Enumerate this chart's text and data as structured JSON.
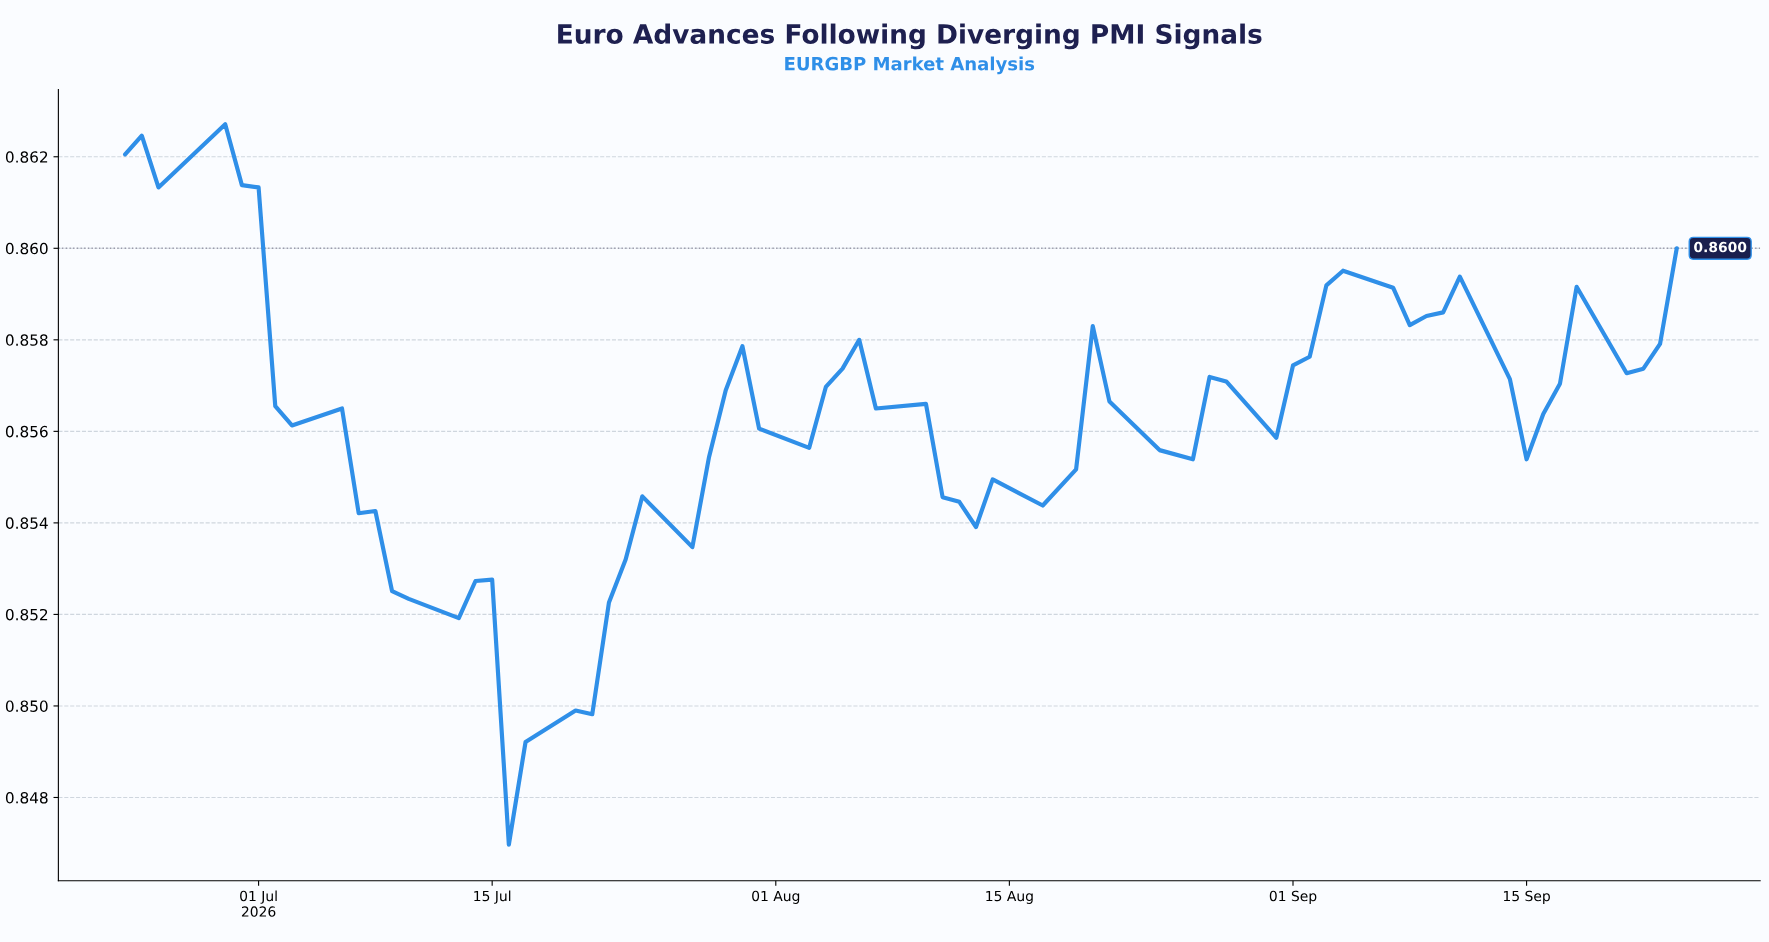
{
  "chart_data": {
    "type": "line",
    "title": "Euro Advances Following Diverging PMI Signals",
    "subtitle": "EURGBP Market Analysis",
    "x": [
      "2026-06-23",
      "2026-06-24",
      "2026-06-25",
      "2026-06-29",
      "2026-06-30",
      "2026-07-01",
      "2026-07-02",
      "2026-07-03",
      "2026-07-06",
      "2026-07-07",
      "2026-07-08",
      "2026-07-09",
      "2026-07-10",
      "2026-07-13",
      "2026-07-14",
      "2026-07-15",
      "2026-07-16",
      "2026-07-17",
      "2026-07-20",
      "2026-07-21",
      "2026-07-22",
      "2026-07-23",
      "2026-07-24",
      "2026-07-27",
      "2026-07-28",
      "2026-07-29",
      "2026-07-30",
      "2026-07-31",
      "2026-08-03",
      "2026-08-04",
      "2026-08-05",
      "2026-08-06",
      "2026-08-07",
      "2026-08-10",
      "2026-08-11",
      "2026-08-12",
      "2026-08-13",
      "2026-08-14",
      "2026-08-17",
      "2026-08-19",
      "2026-08-20",
      "2026-08-21",
      "2026-08-24",
      "2026-08-26",
      "2026-08-27",
      "2026-08-28",
      "2026-08-31",
      "2026-09-01",
      "2026-09-02",
      "2026-09-03",
      "2026-09-04",
      "2026-09-07",
      "2026-09-08",
      "2026-09-09",
      "2026-09-10",
      "2026-09-11",
      "2026-09-14",
      "2026-09-15",
      "2026-09-16",
      "2026-09-17",
      "2026-09-18",
      "2026-09-21",
      "2026-09-22",
      "2026-09-23",
      "2026-09-24"
    ],
    "series": [
      {
        "color": "#2f8fe8",
        "values": [
          0.86205,
          0.86246,
          0.86133,
          0.86271,
          0.86138,
          0.86133,
          0.85655,
          0.85613,
          0.8565,
          0.85421,
          0.85426,
          0.85251,
          0.85234,
          0.85192,
          0.85273,
          0.85276,
          0.84697,
          0.84921,
          0.8499,
          0.84982,
          0.85226,
          0.8532,
          0.85458,
          0.85347,
          0.85544,
          0.8569,
          0.85786,
          0.85606,
          0.85564,
          0.85697,
          0.85737,
          0.858,
          0.8565,
          0.8566,
          0.85456,
          0.85446,
          0.85391,
          0.85495,
          0.85438,
          0.85517,
          0.8583,
          0.85665,
          0.85559,
          0.85539,
          0.85719,
          0.85709,
          0.85586,
          0.85744,
          0.85763,
          0.85919,
          0.85951,
          0.85914,
          0.85832,
          0.85852,
          0.8586,
          0.85938,
          0.85714,
          0.85539,
          0.85638,
          0.85704,
          0.85916,
          0.85727,
          0.85737,
          0.85791,
          0.86
        ]
      }
    ],
    "xlim": [
      "2026-06-19",
      "2026-09-29"
    ],
    "xticks": [
      {
        "value": "2026-07-01",
        "label": "01 Jul\n2026"
      },
      {
        "value": "2026-07-15",
        "label": "15 Jul"
      },
      {
        "value": "2026-08-01",
        "label": "01 Aug"
      },
      {
        "value": "2026-08-15",
        "label": "15 Aug"
      },
      {
        "value": "2026-09-01",
        "label": "01 Sep"
      },
      {
        "value": "2026-09-15",
        "label": "15 Sep"
      }
    ],
    "ylim": [
      0.84618,
      0.86347
    ],
    "yticks": [
      {
        "value": 0.848,
        "label": "0.848"
      },
      {
        "value": 0.85,
        "label": "0.850"
      },
      {
        "value": 0.852,
        "label": "0.852"
      },
      {
        "value": 0.854,
        "label": "0.854"
      },
      {
        "value": 0.856,
        "label": "0.856"
      },
      {
        "value": 0.858,
        "label": "0.858"
      },
      {
        "value": 0.86,
        "label": "0.860"
      },
      {
        "value": 0.862,
        "label": "0.862"
      }
    ],
    "grid": "y",
    "line_style": "solid",
    "marker": "none",
    "ref_lines": [
      {
        "axis": "y",
        "value": 0.86,
        "color": "#9a9aaa",
        "line_style": "dotted"
      }
    ],
    "annotations": [
      {
        "text": "0.8600",
        "x": "2026-09-24",
        "y": 0.86
      }
    ]
  }
}
